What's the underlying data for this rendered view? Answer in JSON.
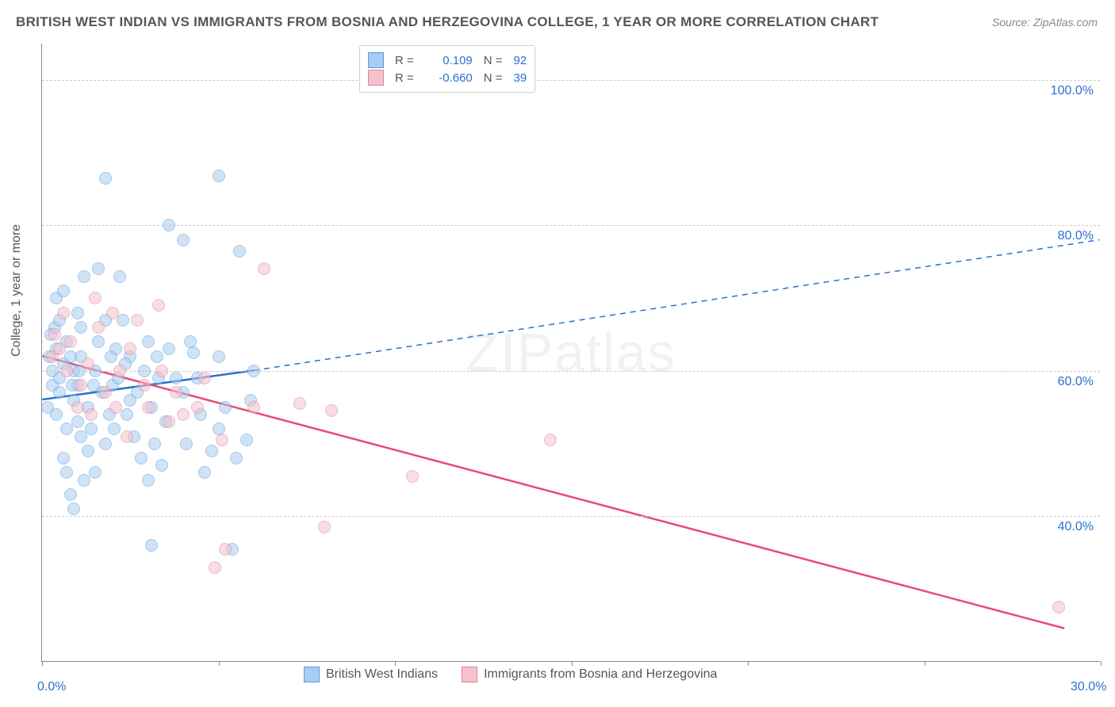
{
  "title": "BRITISH WEST INDIAN VS IMMIGRANTS FROM BOSNIA AND HERZEGOVINA COLLEGE, 1 YEAR OR MORE CORRELATION CHART",
  "source": "Source: ZipAtlas.com",
  "ylabel": "College, 1 year or more",
  "watermark_a": "ZIP",
  "watermark_b": "atlas",
  "chart": {
    "type": "scatter",
    "xlim": [
      0,
      30
    ],
    "ylim": [
      20,
      105
    ],
    "xticks": [
      0,
      5,
      10,
      15,
      20,
      25,
      30
    ],
    "xaxis_labels": [
      {
        "v": 0,
        "t": "0.0%"
      },
      {
        "v": 30,
        "t": "30.0%"
      }
    ],
    "yaxis_labels": [
      {
        "v": 40,
        "t": "40.0%"
      },
      {
        "v": 60,
        "t": "60.0%"
      },
      {
        "v": 80,
        "t": "80.0%"
      },
      {
        "v": 100,
        "t": "100.0%"
      }
    ],
    "grid_color": "#cccccc",
    "background_color": "#ffffff",
    "marker_radius": 8,
    "marker_opacity": 0.55,
    "series": [
      {
        "name": "British West Indians",
        "legend_label": "British West Indians",
        "fill": "#a9cdf0",
        "stroke": "#5a9bdc",
        "line_color": "#2c6fd1",
        "R": "0.109",
        "N": "92",
        "trend": {
          "x1": 0,
          "y1": 56,
          "x2": 6,
          "y2": 60,
          "x3": 30,
          "y3": 78,
          "dash": true
        },
        "points": [
          [
            0.2,
            62
          ],
          [
            0.3,
            60
          ],
          [
            0.3,
            58
          ],
          [
            0.25,
            65
          ],
          [
            0.15,
            55
          ],
          [
            0.4,
            63
          ],
          [
            0.35,
            66
          ],
          [
            0.4,
            70
          ],
          [
            0.5,
            59
          ],
          [
            0.6,
            61
          ],
          [
            0.5,
            57
          ],
          [
            0.6,
            48
          ],
          [
            0.7,
            52
          ],
          [
            0.7,
            46
          ],
          [
            0.8,
            43
          ],
          [
            0.9,
            41
          ],
          [
            0.5,
            67
          ],
          [
            0.7,
            64
          ],
          [
            0.9,
            60
          ],
          [
            1.0,
            53
          ],
          [
            1.0,
            58
          ],
          [
            1.1,
            62
          ],
          [
            1.2,
            73
          ],
          [
            1.0,
            68
          ],
          [
            1.3,
            55
          ],
          [
            1.3,
            49
          ],
          [
            1.5,
            46
          ],
          [
            1.5,
            60
          ],
          [
            1.6,
            74
          ],
          [
            1.6,
            64
          ],
          [
            1.7,
            57
          ],
          [
            1.8,
            67
          ],
          [
            1.8,
            50
          ],
          [
            1.9,
            54
          ],
          [
            1.95,
            62
          ],
          [
            2.0,
            58
          ],
          [
            2.1,
            63
          ],
          [
            2.2,
            73
          ],
          [
            1.8,
            86.5
          ],
          [
            3.6,
            80
          ],
          [
            5.0,
            86.8
          ],
          [
            2.5,
            62
          ],
          [
            2.5,
            56
          ],
          [
            2.6,
            51
          ],
          [
            2.8,
            48
          ],
          [
            2.9,
            60
          ],
          [
            3.0,
            45
          ],
          [
            3.0,
            64
          ],
          [
            3.1,
            55
          ],
          [
            3.2,
            50
          ],
          [
            3.3,
            59
          ],
          [
            3.5,
            53
          ],
          [
            3.6,
            63
          ],
          [
            3.1,
            36
          ],
          [
            4.0,
            78
          ],
          [
            4.3,
            62.5
          ],
          [
            4.0,
            57
          ],
          [
            4.1,
            50
          ],
          [
            4.5,
            54
          ],
          [
            4.6,
            46
          ],
          [
            5.0,
            52
          ],
          [
            5.2,
            55
          ],
          [
            5.4,
            35.5
          ],
          [
            5.6,
            76.5
          ],
          [
            5.8,
            50.5
          ],
          [
            6.0,
            60
          ],
          [
            1.1,
            51
          ],
          [
            1.2,
            45
          ],
          [
            0.6,
            71
          ],
          [
            0.4,
            54
          ],
          [
            0.9,
            56
          ],
          [
            1.1,
            66
          ],
          [
            1.4,
            52
          ],
          [
            1.45,
            58
          ],
          [
            2.3,
            67
          ],
          [
            2.4,
            54
          ],
          [
            2.7,
            57
          ],
          [
            3.4,
            47
          ],
          [
            3.8,
            59
          ],
          [
            4.2,
            64
          ],
          [
            4.4,
            59
          ],
          [
            4.8,
            49
          ],
          [
            5.5,
            48
          ],
          [
            5.0,
            62
          ],
          [
            5.9,
            56
          ],
          [
            0.8,
            62
          ],
          [
            0.85,
            58
          ],
          [
            1.05,
            60
          ],
          [
            2.05,
            52
          ],
          [
            2.15,
            59
          ],
          [
            2.35,
            61
          ],
          [
            3.25,
            62
          ]
        ]
      },
      {
        "name": "Immigrants from Bosnia and Herzegovina",
        "legend_label": "Immigrants from Bosnia and Herzegovina",
        "fill": "#f4c2cd",
        "stroke": "#e57f99",
        "line_color": "#e94d73",
        "R": "-0.660",
        "N": "39",
        "trend": {
          "x1": 0,
          "y1": 62,
          "x2": 29,
          "y2": 24.5,
          "dash": false
        },
        "points": [
          [
            0.3,
            62
          ],
          [
            0.35,
            65
          ],
          [
            0.5,
            63
          ],
          [
            0.6,
            68
          ],
          [
            0.7,
            60
          ],
          [
            0.8,
            64
          ],
          [
            1.0,
            55
          ],
          [
            1.1,
            58
          ],
          [
            1.3,
            61
          ],
          [
            1.4,
            54
          ],
          [
            1.6,
            66
          ],
          [
            1.8,
            57
          ],
          [
            2.0,
            68
          ],
          [
            2.1,
            55
          ],
          [
            2.2,
            60
          ],
          [
            2.4,
            51
          ],
          [
            2.5,
            63
          ],
          [
            2.7,
            67
          ],
          [
            2.9,
            58
          ],
          [
            3.3,
            69
          ],
          [
            3.0,
            55
          ],
          [
            3.4,
            60
          ],
          [
            3.6,
            53
          ],
          [
            3.8,
            57
          ],
          [
            4.0,
            54
          ],
          [
            4.4,
            55
          ],
          [
            4.6,
            59
          ],
          [
            4.9,
            33
          ],
          [
            5.1,
            50.5
          ],
          [
            5.2,
            35.5
          ],
          [
            6.0,
            55
          ],
          [
            6.3,
            74
          ],
          [
            7.3,
            55.5
          ],
          [
            8.0,
            38.5
          ],
          [
            8.2,
            54.5
          ],
          [
            10.5,
            45.5
          ],
          [
            14.4,
            50.5
          ],
          [
            28.8,
            27.5
          ],
          [
            1.5,
            70
          ]
        ]
      }
    ],
    "top_legend_rows": [
      {
        "series_idx": 0
      },
      {
        "series_idx": 1
      }
    ]
  }
}
